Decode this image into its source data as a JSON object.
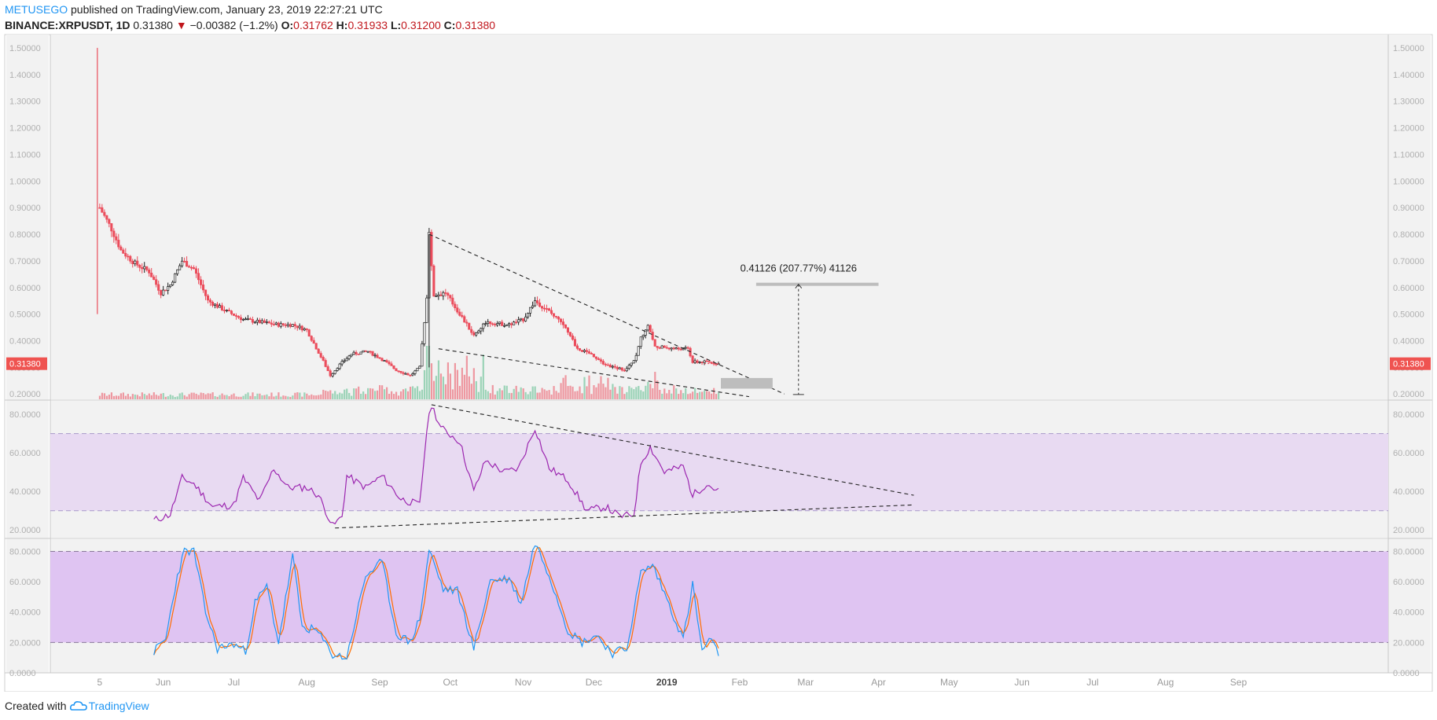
{
  "header": {
    "author": "METUSEGO",
    "published_text": " published on TradingView.com, January 23, 2019 22:27:21 UTC",
    "symbol": "BINANCE:XRPUSDT, 1D",
    "last": "0.31380",
    "change": "−0.00382 (−1.2%)",
    "o_label": "O:",
    "o": "0.31762",
    "h_label": "H:",
    "h": "0.31933",
    "l_label": "L:",
    "l": "0.31200",
    "c_label": "C:",
    "c": "0.31380"
  },
  "footer": {
    "created_with": "Created with",
    "brand": "TradingView"
  },
  "colors": {
    "up": "#53b987",
    "down": "#eb4d5c",
    "rsi": "#9c27b0",
    "stoch_k": "#2196f3",
    "stoch_d": "#ff6d00",
    "rsi_band": "#e8daf2",
    "stoch_band": "#dfc4f2",
    "panel_bg": "#f2f2f2"
  },
  "chart_data": [
    {
      "type": "candlestick",
      "symbol": "BINANCE:XRPUSDT",
      "interval": "1D",
      "y_ticks": [
        "1.50000",
        "1.40000",
        "1.30000",
        "1.20000",
        "1.10000",
        "1.00000",
        "0.90000",
        "0.80000",
        "0.70000",
        "0.60000",
        "0.50000",
        "0.40000",
        "0.30000",
        "0.20000"
      ],
      "ylim": [
        0.18,
        1.55
      ],
      "x_ticks": [
        "5",
        "Jun",
        "Jul",
        "Aug",
        "Sep",
        "Oct",
        "Nov",
        "Dec",
        "2019",
        "Feb",
        "Mar",
        "Apr",
        "May",
        "Jun",
        "Jul",
        "Aug",
        "Sep"
      ],
      "x_tick_dates": [
        "2018-05-05",
        "2018-06-01",
        "2018-07-01",
        "2018-08-01",
        "2018-09-01",
        "2018-10-01",
        "2018-11-01",
        "2018-12-01",
        "2019-01-01",
        "2019-02-01",
        "2019-03-01",
        "2019-04-01",
        "2019-05-01",
        "2019-06-01",
        "2019-07-01",
        "2019-08-01",
        "2019-09-01"
      ],
      "last_price_label": "0.31380",
      "price_path": [
        [
          "2018-05-04",
          1.5
        ],
        [
          "2018-05-04",
          0.5
        ],
        [
          "2018-05-05",
          0.9
        ],
        [
          "2018-05-10",
          0.82
        ],
        [
          "2018-05-14",
          0.74
        ],
        [
          "2018-05-20",
          0.69
        ],
        [
          "2018-05-26",
          0.66
        ],
        [
          "2018-05-31",
          0.58
        ],
        [
          "2018-06-04",
          0.61
        ],
        [
          "2018-06-09",
          0.7
        ],
        [
          "2018-06-14",
          0.67
        ],
        [
          "2018-06-20",
          0.55
        ],
        [
          "2018-06-28",
          0.51
        ],
        [
          "2018-07-05",
          0.48
        ],
        [
          "2018-07-12",
          0.47
        ],
        [
          "2018-07-20",
          0.46
        ],
        [
          "2018-07-26",
          0.46
        ],
        [
          "2018-08-01",
          0.44
        ],
        [
          "2018-08-07",
          0.34
        ],
        [
          "2018-08-11",
          0.27
        ],
        [
          "2018-08-15",
          0.31
        ],
        [
          "2018-08-20",
          0.35
        ],
        [
          "2018-08-27",
          0.36
        ],
        [
          "2018-09-02",
          0.33
        ],
        [
          "2018-09-08",
          0.29
        ],
        [
          "2018-09-14",
          0.27
        ],
        [
          "2018-09-18",
          0.3
        ],
        [
          "2018-09-21",
          0.56
        ],
        [
          "2018-09-22",
          0.8
        ],
        [
          "2018-09-24",
          0.57
        ],
        [
          "2018-09-29",
          0.58
        ],
        [
          "2018-10-05",
          0.5
        ],
        [
          "2018-10-11",
          0.42
        ],
        [
          "2018-10-16",
          0.47
        ],
        [
          "2018-10-26",
          0.46
        ],
        [
          "2018-11-01",
          0.48
        ],
        [
          "2018-11-06",
          0.55
        ],
        [
          "2018-11-12",
          0.51
        ],
        [
          "2018-11-18",
          0.46
        ],
        [
          "2018-11-24",
          0.37
        ],
        [
          "2018-11-30",
          0.35
        ],
        [
          "2018-12-06",
          0.31
        ],
        [
          "2018-12-14",
          0.29
        ],
        [
          "2018-12-19",
          0.34
        ],
        [
          "2018-12-21",
          0.41
        ],
        [
          "2018-12-24",
          0.46
        ],
        [
          "2018-12-27",
          0.38
        ],
        [
          "2019-01-04",
          0.37
        ],
        [
          "2019-01-10",
          0.37
        ],
        [
          "2019-01-12",
          0.32
        ],
        [
          "2019-01-18",
          0.32
        ],
        [
          "2019-01-23",
          0.3138
        ]
      ],
      "annotations": {
        "measure_label": "0.41126 (207.77%) 41126",
        "measure_from": 0.198,
        "measure_to": 0.612,
        "target_level": 0.612,
        "support_zone": [
          0.22,
          0.26
        ],
        "wedge_upper": [
          [
            "2018-09-22",
            0.8
          ],
          [
            "2019-02-20",
            0.2
          ]
        ],
        "wedge_lower": [
          [
            "2018-09-26",
            0.37
          ],
          [
            "2019-02-05",
            0.19
          ]
        ]
      }
    },
    {
      "type": "line",
      "name": "",
      "y_ticks": [
        "80.0000",
        "60.0000",
        "40.0000",
        "20.0000"
      ],
      "ylim": [
        16,
        87
      ],
      "band": [
        30,
        70
      ],
      "values_path": [
        [
          "2018-05-28",
          25
        ],
        [
          "2018-06-04",
          28
        ],
        [
          "2018-06-09",
          47
        ],
        [
          "2018-06-14",
          44
        ],
        [
          "2018-06-22",
          32
        ],
        [
          "2018-07-01",
          33
        ],
        [
          "2018-07-05",
          47
        ],
        [
          "2018-07-12",
          35
        ],
        [
          "2018-07-18",
          52
        ],
        [
          "2018-07-24",
          42
        ],
        [
          "2018-08-01",
          42
        ],
        [
          "2018-08-06",
          38
        ],
        [
          "2018-08-12",
          22
        ],
        [
          "2018-08-16",
          27
        ],
        [
          "2018-08-18",
          48
        ],
        [
          "2018-08-26",
          42
        ],
        [
          "2018-09-02",
          48
        ],
        [
          "2018-09-10",
          36
        ],
        [
          "2018-09-18",
          33
        ],
        [
          "2018-09-21",
          72
        ],
        [
          "2018-09-23",
          85
        ],
        [
          "2018-09-27",
          73
        ],
        [
          "2018-10-05",
          66
        ],
        [
          "2018-10-11",
          40
        ],
        [
          "2018-10-16",
          56
        ],
        [
          "2018-10-24",
          50
        ],
        [
          "2018-10-30",
          52
        ],
        [
          "2018-11-06",
          73
        ],
        [
          "2018-11-12",
          52
        ],
        [
          "2018-11-20",
          46
        ],
        [
          "2018-11-28",
          30
        ],
        [
          "2018-12-06",
          32
        ],
        [
          "2018-12-12",
          27
        ],
        [
          "2018-12-18",
          28
        ],
        [
          "2018-12-21",
          55
        ],
        [
          "2018-12-25",
          63
        ],
        [
          "2018-12-31",
          50
        ],
        [
          "2019-01-08",
          53
        ],
        [
          "2019-01-12",
          38
        ],
        [
          "2019-01-18",
          44
        ],
        [
          "2019-01-23",
          40
        ]
      ],
      "annotations": {
        "upper_line": [
          [
            "2018-09-23",
            85
          ],
          [
            "2019-04-16",
            38
          ]
        ],
        "lower_line": [
          [
            "2018-08-13",
            21
          ],
          [
            "2019-04-16",
            33
          ]
        ]
      }
    },
    {
      "type": "line",
      "series": [
        {
          "name": "",
          "color": "#2196f3"
        },
        {
          "name": "",
          "color": "#ff6d00"
        }
      ],
      "y_ticks": [
        "80.0000",
        "60.0000",
        "40.0000",
        "20.0000",
        "0.0000"
      ],
      "ylim": [
        0,
        88
      ],
      "band": [
        20,
        80
      ],
      "values_path": [
        [
          "2018-05-28",
          14
        ],
        [
          "2018-06-02",
          22
        ],
        [
          "2018-06-07",
          64
        ],
        [
          "2018-06-10",
          80
        ],
        [
          "2018-06-14",
          80
        ],
        [
          "2018-06-19",
          40
        ],
        [
          "2018-06-24",
          16
        ],
        [
          "2018-07-01",
          19
        ],
        [
          "2018-07-06",
          14
        ],
        [
          "2018-07-10",
          46
        ],
        [
          "2018-07-15",
          57
        ],
        [
          "2018-07-20",
          20
        ],
        [
          "2018-07-26",
          77
        ],
        [
          "2018-07-30",
          30
        ],
        [
          "2018-08-05",
          28
        ],
        [
          "2018-08-12",
          12
        ],
        [
          "2018-08-18",
          10
        ],
        [
          "2018-08-26",
          64
        ],
        [
          "2018-09-02",
          73
        ],
        [
          "2018-09-08",
          26
        ],
        [
          "2018-09-14",
          20
        ],
        [
          "2018-09-18",
          36
        ],
        [
          "2018-09-22",
          81
        ],
        [
          "2018-09-28",
          55
        ],
        [
          "2018-10-04",
          54
        ],
        [
          "2018-10-11",
          16
        ],
        [
          "2018-10-18",
          61
        ],
        [
          "2018-10-26",
          62
        ],
        [
          "2018-10-31",
          46
        ],
        [
          "2018-11-06",
          86
        ],
        [
          "2018-11-12",
          65
        ],
        [
          "2018-11-20",
          28
        ],
        [
          "2018-11-26",
          20
        ],
        [
          "2018-12-02",
          25
        ],
        [
          "2018-12-09",
          13
        ],
        [
          "2018-12-15",
          16
        ],
        [
          "2018-12-21",
          66
        ],
        [
          "2018-12-26",
          71
        ],
        [
          "2019-01-02",
          45
        ],
        [
          "2019-01-08",
          22
        ],
        [
          "2019-01-12",
          58
        ],
        [
          "2019-01-16",
          14
        ],
        [
          "2019-01-19",
          22
        ],
        [
          "2019-01-23",
          13
        ]
      ]
    }
  ]
}
